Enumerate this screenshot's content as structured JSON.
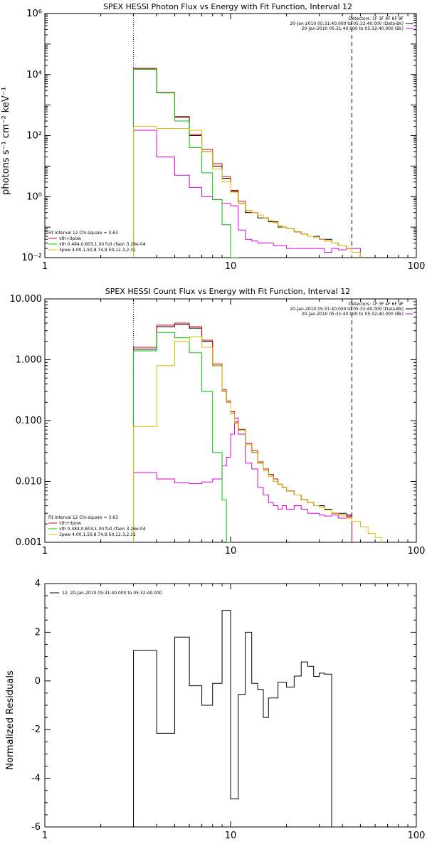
{
  "chart_data": [
    {
      "type": "line",
      "title": "SPEX HESSI Photon Flux vs Energy with Fit Function, Interval 12",
      "xlabel": "",
      "ylabel": "photons s⁻¹ cm⁻² keV⁻¹",
      "xscale": "log",
      "yscale": "log",
      "xlim": [
        1,
        100
      ],
      "ylim": [
        0.01,
        1000000
      ],
      "x_ticks": [
        "1",
        "10",
        "100"
      ],
      "y_ticks": [
        "10⁻²",
        "10⁰",
        "10²",
        "10⁴",
        "10⁶"
      ],
      "vlines": [
        {
          "x": 3,
          "style": "dotted"
        },
        {
          "x": 45,
          "style": "dashed"
        }
      ],
      "legend_top_right": [
        "Detectors: 1F 3F 4F 6F 9F",
        "20-Jan-2010 05:31:40.000 to 05:32:40.000 (Data-Bk)",
        "20-Jan-2010 05:31:40.000 to 05:32:40.000 (Bk)"
      ],
      "legend_bottom_left": [
        "Fit Interval 12   Chi-square = 3.63",
        "vth+3pow",
        "vth 0.484,0.803,1.00  full cfaon 3.26e-04",
        "3pow 4.00,1.50,8.74,9.50,12.3,2.31"
      ],
      "edges": [
        3,
        3.5,
        4,
        4.5,
        5,
        5.5,
        6,
        6.5,
        7,
        7.5,
        8,
        8.5,
        9,
        9.5,
        10,
        11,
        12,
        13,
        14,
        15,
        16,
        17,
        18,
        19,
        20,
        22,
        24,
        26,
        28,
        30,
        32,
        35,
        38,
        42,
        45,
        50
      ],
      "series": [
        {
          "name": "Data-Bk",
          "color": "#000000",
          "values": [
            15000,
            15000,
            2500,
            2500,
            400,
            400,
            100,
            100,
            30,
            30,
            10,
            10,
            4,
            4,
            1.5,
            0.6,
            0.3,
            0.3,
            0.2,
            0.2,
            0.15,
            0.15,
            0.1,
            0.1,
            0.09,
            0.07,
            0.06,
            0.05,
            0.05,
            0.04,
            0.04,
            0.03,
            0.025,
            0.02,
            0.015
          ]
        },
        {
          "name": "Bk",
          "color": "#dd00dd",
          "values": [
            150,
            150,
            20,
            20,
            5,
            5,
            2,
            2,
            1,
            1,
            0.8,
            0.8,
            0.6,
            0.6,
            0.5,
            0.08,
            0.04,
            0.035,
            0.03,
            0.03,
            0.03,
            0.025,
            0.025,
            0.025,
            0.02,
            0.02,
            0.02,
            0.02,
            0.02,
            0.02,
            0.015,
            0.02,
            0.018,
            0.02,
            0.02
          ]
        },
        {
          "name": "vth+3pow",
          "color": "#dd0000",
          "values": [
            16000,
            16000,
            2600,
            2600,
            420,
            420,
            110,
            110,
            35,
            35,
            12,
            12,
            4.5,
            4.5,
            1.6,
            0.7,
            0.35,
            0.3,
            0.25,
            0.2,
            0.16,
            0.14,
            0.11,
            0.1,
            0.09,
            0.07,
            0.06,
            0.05,
            0.045,
            0.04,
            0.035,
            0.03,
            0.025,
            0.02,
            0.015
          ]
        },
        {
          "name": "vth",
          "color": "#00cc00",
          "values": [
            15000,
            15000,
            2500,
            2500,
            300,
            300,
            40,
            40,
            6,
            6,
            0.8,
            0.8,
            0.12,
            0.12,
            0.01
          ]
        },
        {
          "name": "3pow",
          "color": "#ddbb00",
          "values": [
            200,
            200,
            170,
            170,
            170,
            170,
            150,
            150,
            30,
            30,
            8,
            8,
            3,
            3,
            1.4,
            0.6,
            0.35,
            0.3,
            0.25,
            0.2,
            0.16,
            0.14,
            0.11,
            0.1,
            0.09,
            0.07,
            0.06,
            0.05,
            0.045,
            0.04,
            0.035,
            0.03,
            0.025,
            0.02,
            0.015,
            0.01
          ]
        }
      ]
    },
    {
      "type": "line",
      "title": "SPEX HESSI Count Flux vs Energy with Fit Function, Interval 12",
      "xlabel": "",
      "ylabel": "",
      "xscale": "log",
      "yscale": "log",
      "xlim": [
        1,
        100
      ],
      "ylim": [
        0.001,
        10
      ],
      "x_ticks": [
        "1",
        "10",
        "100"
      ],
      "y_ticks": [
        "0.001",
        "0.010",
        "0.100",
        "1.000",
        "10.000"
      ],
      "vlines": [
        {
          "x": 3,
          "style": "dotted"
        },
        {
          "x": 45,
          "style": "dashed"
        }
      ],
      "legend_top_right": [
        "Detectors: 1F 3F 4F 6F 9F",
        "20-Jan-2010 05:31:40.000 to 05:32:40.000 (Data-Bk)",
        "20-Jan-2010 05:31:40.000 to 05:32:40.000 (Bk)"
      ],
      "legend_bottom_left": [
        "Fit Interval 12   Chi-square = 3.63",
        "vth+3pow",
        "vth 0.484,0.803,1.00  full cfaon 3.26e-04",
        "3pow 4.00,1.50,8.74,9.50,12.3,2.31"
      ],
      "edges": [
        3,
        4,
        5,
        6,
        7,
        8,
        9,
        9.5,
        10,
        10.5,
        11,
        12,
        13,
        14,
        15,
        16,
        17,
        18,
        19,
        20,
        22,
        24,
        26,
        28,
        30,
        32,
        35,
        38,
        42,
        45,
        50,
        55,
        60,
        65
      ],
      "series": [
        {
          "name": "Data-Bk",
          "color": "#000000",
          "values": [
            1.5,
            3.5,
            3.8,
            3.3,
            2.0,
            0.8,
            0.3,
            0.2,
            0.13,
            0.09,
            0.07,
            0.04,
            0.03,
            0.02,
            0.015,
            0.013,
            0.01,
            0.009,
            0.008,
            0.007,
            0.006,
            0.005,
            0.0045,
            0.004,
            0.004,
            0.0035,
            0.003,
            0.003,
            0.0028
          ]
        },
        {
          "name": "Bk",
          "color": "#dd00dd",
          "values": [
            0.014,
            0.011,
            0.0095,
            0.0092,
            0.0098,
            0.011,
            0.018,
            0.025,
            0.06,
            0.11,
            0.06,
            0.02,
            0.016,
            0.008,
            0.006,
            0.0045,
            0.004,
            0.0035,
            0.004,
            0.0035,
            0.004,
            0.0035,
            0.003,
            0.003,
            0.0028,
            0.0027,
            0.0028,
            0.0025,
            0.0027
          ]
        },
        {
          "name": "vth+3pow",
          "color": "#dd0000",
          "values": [
            1.6,
            3.7,
            4.0,
            3.5,
            2.1,
            0.85,
            0.32,
            0.21,
            0.14,
            0.095,
            0.072,
            0.042,
            0.032,
            0.021,
            0.016,
            0.013,
            0.011,
            0.009,
            0.008,
            0.007,
            0.006,
            0.005,
            0.0045,
            0.004,
            0.0038,
            0.0034,
            0.003,
            0.0028,
            0.0026
          ]
        },
        {
          "name": "vth",
          "color": "#00cc00",
          "values": [
            1.4,
            2.8,
            2.3,
            1.3,
            0.3,
            0.03,
            0.005,
            0.001
          ]
        },
        {
          "name": "3pow",
          "color": "#ddbb00",
          "values": [
            0.08,
            0.8,
            2.0,
            2.4,
            1.6,
            0.8,
            0.3,
            0.2,
            0.13,
            0.09,
            0.07,
            0.04,
            0.03,
            0.02,
            0.015,
            0.012,
            0.01,
            0.009,
            0.008,
            0.007,
            0.006,
            0.005,
            0.0045,
            0.004,
            0.0038,
            0.0034,
            0.003,
            0.0028,
            0.0025,
            0.0022,
            0.0018,
            0.0014,
            0.0012
          ]
        }
      ]
    },
    {
      "type": "line",
      "title": "",
      "xlabel": "",
      "ylabel": "Normalized Residuals",
      "xscale": "log",
      "yscale": "linear",
      "xlim": [
        1,
        100
      ],
      "ylim": [
        -6,
        4
      ],
      "x_ticks": [
        "1",
        "10",
        "100"
      ],
      "y_ticks": [
        "-6",
        "-4",
        "-2",
        "0",
        "2",
        "4"
      ],
      "legend_top_left": "12, 20-Jan-2010 05:31:40.000 to 05:32:40.000",
      "edges": [
        3,
        4,
        5,
        6,
        7,
        8,
        9,
        10,
        11,
        12,
        13,
        14,
        15,
        16,
        18,
        20,
        22,
        24,
        26,
        28,
        30,
        32,
        35,
        38,
        42,
        45
      ],
      "series": [
        {
          "name": "",
          "color": "#000000",
          "values": [
            1.25,
            -2.15,
            1.8,
            -0.2,
            -1.0,
            -0.1,
            2.9,
            -4.85,
            -0.55,
            2.0,
            -0.1,
            -0.35,
            -1.5,
            -0.7,
            -0.05,
            -0.25,
            0.2,
            0.78,
            0.6,
            0.18,
            0.32,
            0.28
          ]
        }
      ]
    }
  ]
}
